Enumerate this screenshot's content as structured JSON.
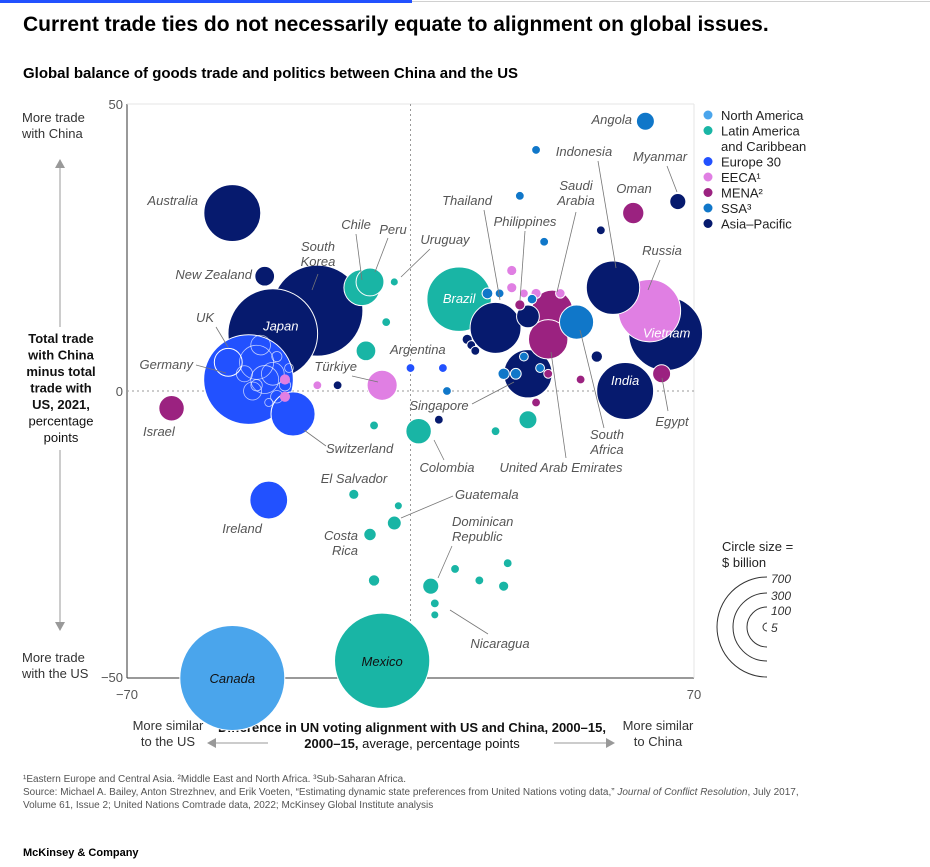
{
  "headline": "Current trade ties do not necessarily equate to alignment on global issues.",
  "chart_data": {
    "type": "scatter",
    "title": "Global balance of goods trade and politics between China and the US",
    "xlabel_bold": "Difference in UN voting alignment with US and China, 2000–15,",
    "xlabel_rest": " average, percentage points",
    "x_left_label": [
      "More similar",
      "to the US"
    ],
    "x_right_label": [
      "More similar",
      "to China"
    ],
    "ylabel_lines": [
      "Total trade",
      "with China",
      "minus total",
      "trade with",
      "US, 2021,"
    ],
    "ylabel_rest": [
      "percentage",
      "points"
    ],
    "y_top_label": [
      "More trade",
      "with China"
    ],
    "y_bottom_label": [
      "More trade",
      "with the US"
    ],
    "xlim": [
      -70,
      70
    ],
    "ylim": [
      -50,
      50
    ],
    "x_ticks": [
      "−70",
      "70"
    ],
    "y_ticks": [
      "50",
      "0",
      "−50"
    ],
    "grid": false,
    "reference_lines": {
      "x": 0,
      "y": 0,
      "style": "dotted"
    },
    "legend_placement": "top-right",
    "legend": [
      {
        "key": "NA",
        "label": "North America",
        "color": "#4aa5ec"
      },
      {
        "key": "LAC",
        "label": "Latin America and Caribbean",
        "lines": [
          "Latin America",
          "and Caribbean"
        ],
        "color": "#19b5a5"
      },
      {
        "key": "EU",
        "label": "Europe 30",
        "color": "#2251ff"
      },
      {
        "key": "EECA",
        "label": "EECA¹",
        "color": "#e07fe3"
      },
      {
        "key": "MENA",
        "label": "MENA²",
        "color": "#9b2280"
      },
      {
        "key": "SSA",
        "label": "SSA³",
        "color": "#1077c9"
      },
      {
        "key": "AP",
        "label": "Asia–Pacific",
        "color": "#061a6e"
      }
    ],
    "size_legend": {
      "title": [
        "Circle size =",
        "$ billion"
      ],
      "values": [
        700,
        300,
        100,
        5
      ]
    },
    "points": [
      {
        "name": "Canada",
        "region": "NA",
        "x": -44,
        "y": -50,
        "size": 850
      },
      {
        "name": "Mexico",
        "region": "LAC",
        "x": -7,
        "y": -47,
        "size": 700
      },
      {
        "name": "Japan",
        "region": "AP",
        "x": -34,
        "y": 10,
        "size": 620
      },
      {
        "name": "South Korea",
        "region": "AP",
        "x": -23,
        "y": 14,
        "size": 640
      },
      {
        "name": "Australia",
        "region": "AP",
        "x": -44,
        "y": 31,
        "size": 250
      },
      {
        "name": "New Zealand",
        "region": "AP",
        "x": -36,
        "y": 20,
        "size": 30
      },
      {
        "name": "Germany",
        "region": "EU",
        "x": -40,
        "y": 2,
        "size": 620
      },
      {
        "name": "UK",
        "region": "EU",
        "x": -45,
        "y": 5,
        "size": 60
      },
      {
        "name": "Israel",
        "region": "MENA",
        "x": -59,
        "y": -3,
        "size": 50
      },
      {
        "name": "Switzerland",
        "region": "EU",
        "x": -29,
        "y": -4,
        "size": 150
      },
      {
        "name": "Ireland",
        "region": "EU",
        "x": -35,
        "y": -19,
        "size": 110
      },
      {
        "name": "Chile",
        "region": "LAC",
        "x": -12,
        "y": 18,
        "size": 100
      },
      {
        "name": "Peru",
        "region": "LAC",
        "x": -10,
        "y": 19,
        "size": 60
      },
      {
        "name": "Uruguay",
        "region": "LAC",
        "x": -4,
        "y": 19,
        "size": 5
      },
      {
        "name": "Argentina",
        "region": "LAC",
        "x": -11,
        "y": 7,
        "size": 30
      },
      {
        "name": "Türkiye",
        "region": "EECA",
        "x": -7,
        "y": 1,
        "size": 70
      },
      {
        "name": "Colombia",
        "region": "LAC",
        "x": 2,
        "y": -7,
        "size": 50
      },
      {
        "name": "El Salvador",
        "region": "LAC",
        "x": -14,
        "y": -18,
        "size": 8
      },
      {
        "name": "Guatemala",
        "region": "LAC",
        "x": -4,
        "y": -23,
        "size": 15
      },
      {
        "name": "Costa Rica",
        "region": "LAC",
        "x": -10,
        "y": -25,
        "size": 12
      },
      {
        "name": "Dominican Republic",
        "region": "LAC",
        "x": 5,
        "y": -34,
        "size": 20
      },
      {
        "name": "Nicaragua",
        "region": "LAC",
        "x": 6,
        "y": -39,
        "size": 5
      },
      {
        "name": "Brazil",
        "region": "LAC",
        "x": 12,
        "y": 16,
        "size": 320
      },
      {
        "name": "Thailand",
        "region": "AP",
        "x": 21,
        "y": 11,
        "size": 200
      },
      {
        "name": "Philippines",
        "region": "AP",
        "x": 29,
        "y": 13,
        "size": 40
      },
      {
        "name": "Indonesia",
        "region": "AP",
        "x": 50,
        "y": 18,
        "size": 220
      },
      {
        "name": "Saudi Arabia",
        "region": "MENA",
        "x": 35,
        "y": 14,
        "size": 130
      },
      {
        "name": "Oman",
        "region": "MENA",
        "x": 55,
        "y": 31,
        "size": 35
      },
      {
        "name": "Myanmar",
        "region": "AP",
        "x": 66,
        "y": 33,
        "size": 20
      },
      {
        "name": "Angola",
        "region": "SSA",
        "x": 58,
        "y": 47,
        "size": 25
      },
      {
        "name": "Russia",
        "region": "EECA",
        "x": 59,
        "y": 14,
        "size": 300
      },
      {
        "name": "Vietnam",
        "region": "AP",
        "x": 63,
        "y": 10,
        "size": 420
      },
      {
        "name": "India",
        "region": "AP",
        "x": 53,
        "y": 0,
        "size": 250
      },
      {
        "name": "Egypt",
        "region": "MENA",
        "x": 62,
        "y": 3,
        "size": 25
      },
      {
        "name": "South Africa",
        "region": "SSA",
        "x": 41,
        "y": 12,
        "size": 90
      },
      {
        "name": "United Arab Emirates",
        "region": "MENA",
        "x": 34,
        "y": 9,
        "size": 120
      },
      {
        "name": "Singapore",
        "region": "AP",
        "x": 29,
        "y": 3,
        "size": 180
      }
    ]
  },
  "footnotes": {
    "notes": "¹Eastern Europe and Central Asia. ²Middle East and North Africa. ³Sub-Saharan Africa.",
    "source_pre": "Source: Michael A. Bailey, Anton Strezhnev, and Erik Voeten, “Estimating dynamic state preferences from United Nations voting data,” ",
    "source_journal": "Journal of Conflict Resolution",
    "source_post": ", July 2017, Volume 61, Issue 2; United Nations Comtrade data, 2022; McKinsey Global Institute analysis"
  },
  "brand": "McKinsey & Company"
}
